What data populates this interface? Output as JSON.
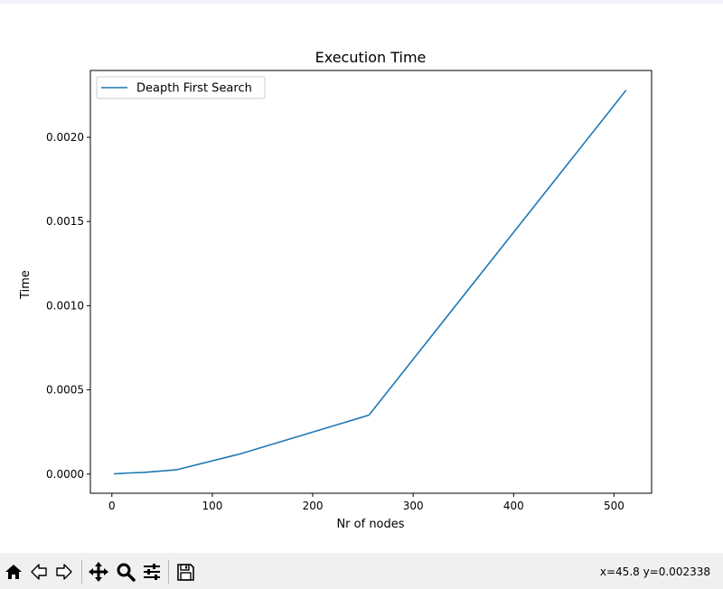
{
  "toolbar": {
    "buttons": [
      {
        "name": "home",
        "icon": "home-icon"
      },
      {
        "name": "back",
        "icon": "arrow-left-icon"
      },
      {
        "name": "forward",
        "icon": "arrow-right-icon"
      },
      {
        "name": "pan",
        "icon": "move-icon"
      },
      {
        "name": "zoom",
        "icon": "magnifier-icon"
      },
      {
        "name": "configure-subplots",
        "icon": "sliders-icon"
      },
      {
        "name": "save",
        "icon": "floppy-disk-icon"
      }
    ],
    "coordinates": "x=45.8 y=0.002338"
  },
  "chart_data": {
    "type": "line",
    "title": "Execution Time",
    "xlabel": "Nr of nodes",
    "ylabel": "Time",
    "xlim": [
      -21.4,
      537.4
    ],
    "ylim": [
      -0.000114,
      0.002397
    ],
    "xticks": [
      0,
      100,
      200,
      300,
      400,
      500
    ],
    "xtick_labels": [
      "0",
      "100",
      "200",
      "300",
      "400",
      "500"
    ],
    "yticks": [
      0.0,
      0.0005,
      0.001,
      0.0015,
      0.002
    ],
    "ytick_labels": [
      "0.0000",
      "0.0005",
      "0.0010",
      "0.0015",
      "0.0020"
    ],
    "grid": false,
    "legend_position": "upper left",
    "series": [
      {
        "name": "Deapth First Search",
        "color": "#1f77b4",
        "x": [
          2,
          4,
          8,
          16,
          32,
          64,
          128,
          256,
          512
        ],
        "y": [
          1e-06,
          2e-06,
          3e-06,
          6e-06,
          1e-05,
          2.5e-05,
          0.00012,
          0.00035,
          0.00228
        ]
      }
    ]
  }
}
